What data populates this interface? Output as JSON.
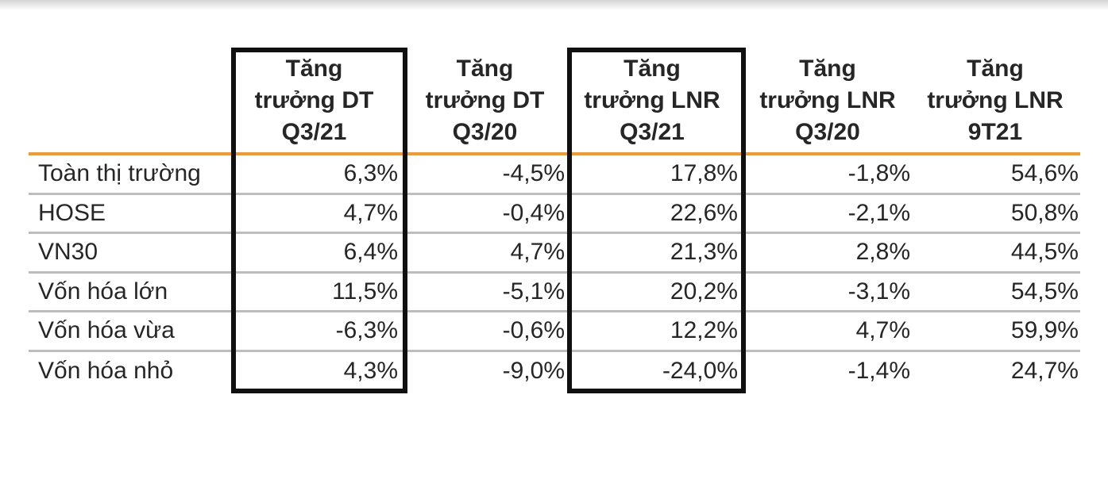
{
  "page": {
    "background": "#ffffff"
  },
  "colors": {
    "accent_orange_header_rule": "#F59A28",
    "row_divider_gray": "#BDBDBD",
    "highlight_box_black": "#101010",
    "text_dark": "#262626"
  },
  "table": {
    "header": {
      "columns": [
        {
          "lines": [
            "Tăng",
            "trưởng DT",
            "Q3/21"
          ],
          "highlighted": true
        },
        {
          "lines": [
            "Tăng",
            "trưởng DT",
            "Q3/20"
          ],
          "highlighted": false
        },
        {
          "lines": [
            "Tăng",
            "trưởng LNR",
            "Q3/21"
          ],
          "highlighted": true
        },
        {
          "lines": [
            "Tăng",
            "trưởng LNR",
            "Q3/20"
          ],
          "highlighted": false
        },
        {
          "lines": [
            "Tăng",
            "trưởng LNR",
            "9T21"
          ],
          "highlighted": false
        }
      ]
    },
    "rows": [
      {
        "label": "Toàn thị trường",
        "values": [
          "6,3%",
          "-4,5%",
          "17,8%",
          "-1,8%",
          "54,6%"
        ]
      },
      {
        "label": "HOSE",
        "values": [
          "4,7%",
          "-0,4%",
          "22,6%",
          "-2,1%",
          "50,8%"
        ]
      },
      {
        "label": "VN30",
        "values": [
          "6,4%",
          "4,7%",
          "21,3%",
          "2,8%",
          "44,5%"
        ]
      },
      {
        "label": "Vốn hóa lớn",
        "values": [
          "11,5%",
          "-5,1%",
          "20,2%",
          "-3,1%",
          "54,5%"
        ]
      },
      {
        "label": "Vốn hóa vừa",
        "values": [
          "-6,3%",
          "-0,6%",
          "12,2%",
          "4,7%",
          "59,9%"
        ]
      },
      {
        "label": "Vốn hóa nhỏ",
        "values": [
          "4,3%",
          "-9,0%",
          "-24,0%",
          "-1,4%",
          "24,7%"
        ]
      }
    ]
  },
  "chart_data": {
    "type": "table",
    "columns": [
      "",
      "Tăng trưởng DT Q3/21",
      "Tăng trưởng DT Q3/20",
      "Tăng trưởng LNR Q3/21",
      "Tăng trưởng LNR Q3/20",
      "Tăng trưởng LNR 9T21"
    ],
    "rows": [
      [
        "Toàn thị trường",
        "6,3%",
        "-4,5%",
        "17,8%",
        "-1,8%",
        "54,6%"
      ],
      [
        "HOSE",
        "4,7%",
        "-0,4%",
        "22,6%",
        "-2,1%",
        "50,8%"
      ],
      [
        "VN30",
        "6,4%",
        "4,7%",
        "21,3%",
        "2,8%",
        "44,5%"
      ],
      [
        "Vốn hóa lớn",
        "11,5%",
        "-5,1%",
        "20,2%",
        "-3,1%",
        "54,5%"
      ],
      [
        "Vốn hóa vừa",
        "-6,3%",
        "-0,6%",
        "12,2%",
        "4,7%",
        "59,9%"
      ],
      [
        "Vốn hóa nhỏ",
        "4,3%",
        "-9,0%",
        "-24,0%",
        "-1,4%",
        "24,7%"
      ]
    ],
    "highlighted_columns": [
      "Tăng trưởng DT Q3/21",
      "Tăng trưởng LNR Q3/21"
    ]
  }
}
